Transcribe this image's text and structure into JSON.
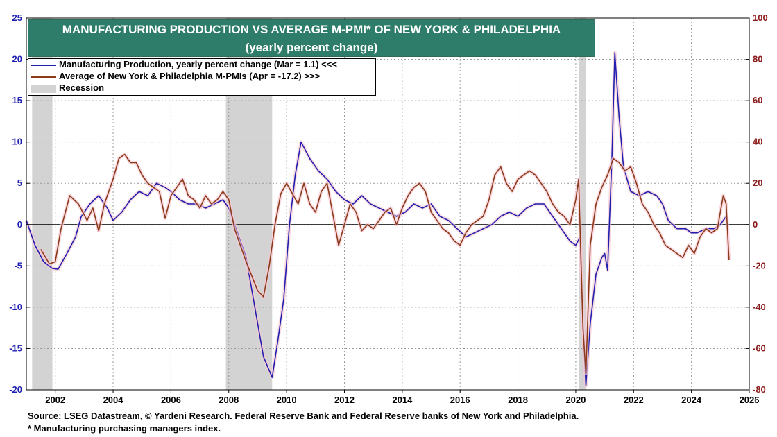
{
  "title": {
    "line1": "MANUFACTURING PRODUCTION VS AVERAGE M-PMI* OF NEW YORK & PHILADELPHIA",
    "line2": "(yearly percent change)",
    "background": "#2e7d6b"
  },
  "legend": {
    "items": [
      {
        "label": "Manufacturing Production, yearly percent change  (Mar = 1.1) <<<",
        "color": "#1f1fb0",
        "kind": "line"
      },
      {
        "label": "Average of New York & Philadelphia M-PMIs (Apr = -17.2) >>>",
        "color": "#8b3a1a",
        "kind": "line"
      },
      {
        "label": "Recession",
        "color": "#d3d3d3",
        "kind": "box"
      }
    ]
  },
  "footnotes": {
    "source": "Source: LSEG Datastream, © Yardeni Research. Federal Reserve Bank and Federal Reserve banks of New York and Philadelphia.",
    "note": "* Manufacturing purchasing managers index."
  },
  "chart_data": {
    "type": "line",
    "xlim": [
      2001.0,
      2026.0
    ],
    "x_ticks": [
      2002,
      2004,
      2006,
      2008,
      2010,
      2012,
      2014,
      2016,
      2018,
      2020,
      2022,
      2024,
      2026
    ],
    "left_axis": {
      "ylim": [
        -20,
        25
      ],
      "ticks": [
        -20,
        -15,
        -10,
        -5,
        0,
        5,
        10,
        15,
        20,
        25
      ],
      "tick_color": "#1f1fb0"
    },
    "right_axis": {
      "ylim": [
        -80,
        100
      ],
      "ticks": [
        -80,
        -60,
        -40,
        -20,
        0,
        20,
        40,
        60,
        80,
        100
      ],
      "tick_color": "#8b1a1a"
    },
    "grid": true,
    "recessions": [
      [
        2001.2,
        2001.9
      ],
      [
        2007.9,
        2009.5
      ],
      [
        2020.1,
        2020.35
      ]
    ],
    "series": [
      {
        "name": "Manufacturing Production, yearly percent change  (Mar = 1.1) <<<",
        "axis": "left",
        "color": "#1f1fb0",
        "points": [
          [
            2001.0,
            0.5
          ],
          [
            2001.3,
            -2.5
          ],
          [
            2001.6,
            -4.5
          ],
          [
            2001.9,
            -5.3
          ],
          [
            2002.1,
            -5.4
          ],
          [
            2002.4,
            -3.5
          ],
          [
            2002.7,
            -1.5
          ],
          [
            2002.9,
            1.0
          ],
          [
            2003.2,
            2.5
          ],
          [
            2003.5,
            3.5
          ],
          [
            2003.8,
            2.0
          ],
          [
            2004.0,
            0.5
          ],
          [
            2004.3,
            1.5
          ],
          [
            2004.6,
            3.0
          ],
          [
            2004.9,
            4.0
          ],
          [
            2005.2,
            3.5
          ],
          [
            2005.5,
            5.0
          ],
          [
            2005.8,
            4.5
          ],
          [
            2006.0,
            4.0
          ],
          [
            2006.3,
            3.0
          ],
          [
            2006.6,
            2.5
          ],
          [
            2006.9,
            2.5
          ],
          [
            2007.2,
            2.0
          ],
          [
            2007.5,
            2.5
          ],
          [
            2007.8,
            3.0
          ],
          [
            2008.0,
            2.0
          ],
          [
            2008.3,
            -1.0
          ],
          [
            2008.6,
            -4.0
          ],
          [
            2008.9,
            -10.0
          ],
          [
            2009.2,
            -16.0
          ],
          [
            2009.5,
            -18.5
          ],
          [
            2009.7,
            -14.0
          ],
          [
            2009.9,
            -9.0
          ],
          [
            2010.1,
            0.0
          ],
          [
            2010.3,
            6.0
          ],
          [
            2010.5,
            10.0
          ],
          [
            2010.8,
            8.0
          ],
          [
            2011.1,
            6.5
          ],
          [
            2011.4,
            5.5
          ],
          [
            2011.7,
            4.0
          ],
          [
            2012.0,
            3.0
          ],
          [
            2012.3,
            2.5
          ],
          [
            2012.6,
            3.5
          ],
          [
            2012.9,
            2.5
          ],
          [
            2013.2,
            2.0
          ],
          [
            2013.5,
            1.5
          ],
          [
            2013.8,
            1.0
          ],
          [
            2014.1,
            1.5
          ],
          [
            2014.4,
            2.5
          ],
          [
            2014.7,
            2.0
          ],
          [
            2015.0,
            2.5
          ],
          [
            2015.3,
            1.0
          ],
          [
            2015.6,
            0.5
          ],
          [
            2015.9,
            -0.5
          ],
          [
            2016.2,
            -1.5
          ],
          [
            2016.5,
            -1.0
          ],
          [
            2016.8,
            -0.5
          ],
          [
            2017.1,
            0.0
          ],
          [
            2017.4,
            1.0
          ],
          [
            2017.7,
            1.5
          ],
          [
            2018.0,
            1.0
          ],
          [
            2018.3,
            2.0
          ],
          [
            2018.6,
            2.5
          ],
          [
            2018.9,
            2.5
          ],
          [
            2019.2,
            1.0
          ],
          [
            2019.5,
            -0.5
          ],
          [
            2019.8,
            -2.0
          ],
          [
            2020.0,
            -2.5
          ],
          [
            2020.15,
            -1.5
          ],
          [
            2020.25,
            -12.0
          ],
          [
            2020.35,
            -19.5
          ],
          [
            2020.5,
            -12.0
          ],
          [
            2020.7,
            -6.0
          ],
          [
            2020.9,
            -4.0
          ],
          [
            2021.0,
            -3.5
          ],
          [
            2021.1,
            -5.5
          ],
          [
            2021.25,
            8.0
          ],
          [
            2021.35,
            20.8
          ],
          [
            2021.5,
            13.0
          ],
          [
            2021.65,
            7.0
          ],
          [
            2021.9,
            4.0
          ],
          [
            2022.2,
            3.5
          ],
          [
            2022.5,
            4.0
          ],
          [
            2022.8,
            3.5
          ],
          [
            2023.0,
            2.5
          ],
          [
            2023.2,
            0.5
          ],
          [
            2023.5,
            -0.5
          ],
          [
            2023.8,
            -0.5
          ],
          [
            2024.0,
            -1.0
          ],
          [
            2024.2,
            -1.0
          ],
          [
            2024.5,
            -0.5
          ],
          [
            2024.8,
            -0.5
          ],
          [
            2025.0,
            0.0
          ],
          [
            2025.2,
            1.0
          ]
        ]
      },
      {
        "name": "Average of New York & Philadelphia M-PMIs (Apr = -17.2) >>>",
        "axis": "right",
        "color": "#8b3a1a",
        "points": [
          [
            2001.5,
            -12
          ],
          [
            2001.8,
            -19
          ],
          [
            2002.0,
            -18
          ],
          [
            2002.2,
            -2
          ],
          [
            2002.5,
            14
          ],
          [
            2002.8,
            10
          ],
          [
            2003.1,
            2
          ],
          [
            2003.3,
            8
          ],
          [
            2003.5,
            -3
          ],
          [
            2003.7,
            10
          ],
          [
            2004.0,
            22
          ],
          [
            2004.2,
            32
          ],
          [
            2004.4,
            34
          ],
          [
            2004.6,
            30
          ],
          [
            2004.8,
            30
          ],
          [
            2005.0,
            24
          ],
          [
            2005.2,
            20
          ],
          [
            2005.4,
            18
          ],
          [
            2005.6,
            16
          ],
          [
            2005.8,
            3
          ],
          [
            2006.0,
            14
          ],
          [
            2006.2,
            18
          ],
          [
            2006.4,
            22
          ],
          [
            2006.6,
            14
          ],
          [
            2006.8,
            12
          ],
          [
            2007.0,
            8
          ],
          [
            2007.2,
            14
          ],
          [
            2007.4,
            10
          ],
          [
            2007.6,
            12
          ],
          [
            2007.8,
            16
          ],
          [
            2008.0,
            12
          ],
          [
            2008.2,
            -2
          ],
          [
            2008.4,
            -10
          ],
          [
            2008.6,
            -18
          ],
          [
            2008.8,
            -25
          ],
          [
            2009.0,
            -32
          ],
          [
            2009.2,
            -35
          ],
          [
            2009.4,
            -20
          ],
          [
            2009.6,
            0
          ],
          [
            2009.8,
            15
          ],
          [
            2010.0,
            20
          ],
          [
            2010.2,
            15
          ],
          [
            2010.4,
            10
          ],
          [
            2010.6,
            20
          ],
          [
            2010.8,
            10
          ],
          [
            2011.0,
            6
          ],
          [
            2011.2,
            16
          ],
          [
            2011.4,
            20
          ],
          [
            2011.6,
            5
          ],
          [
            2011.8,
            -10
          ],
          [
            2012.0,
            0
          ],
          [
            2012.2,
            10
          ],
          [
            2012.4,
            6
          ],
          [
            2012.6,
            -3
          ],
          [
            2012.8,
            0
          ],
          [
            2013.0,
            -2
          ],
          [
            2013.2,
            2
          ],
          [
            2013.4,
            6
          ],
          [
            2013.6,
            8
          ],
          [
            2013.8,
            0
          ],
          [
            2014.0,
            8
          ],
          [
            2014.2,
            14
          ],
          [
            2014.4,
            18
          ],
          [
            2014.6,
            20
          ],
          [
            2014.8,
            16
          ],
          [
            2015.0,
            6
          ],
          [
            2015.2,
            2
          ],
          [
            2015.4,
            -2
          ],
          [
            2015.6,
            -4
          ],
          [
            2015.8,
            -8
          ],
          [
            2016.0,
            -10
          ],
          [
            2016.2,
            -4
          ],
          [
            2016.4,
            0
          ],
          [
            2016.6,
            2
          ],
          [
            2016.8,
            4
          ],
          [
            2017.0,
            12
          ],
          [
            2017.2,
            24
          ],
          [
            2017.4,
            28
          ],
          [
            2017.6,
            20
          ],
          [
            2017.8,
            16
          ],
          [
            2018.0,
            22
          ],
          [
            2018.2,
            24
          ],
          [
            2018.4,
            26
          ],
          [
            2018.6,
            24
          ],
          [
            2018.8,
            20
          ],
          [
            2019.0,
            16
          ],
          [
            2019.2,
            10
          ],
          [
            2019.4,
            6
          ],
          [
            2019.6,
            4
          ],
          [
            2019.8,
            0
          ],
          [
            2020.0,
            12
          ],
          [
            2020.1,
            22
          ],
          [
            2020.25,
            -50
          ],
          [
            2020.35,
            -72
          ],
          [
            2020.5,
            -10
          ],
          [
            2020.7,
            10
          ],
          [
            2020.9,
            18
          ],
          [
            2021.1,
            24
          ],
          [
            2021.3,
            32
          ],
          [
            2021.5,
            30
          ],
          [
            2021.7,
            26
          ],
          [
            2021.9,
            28
          ],
          [
            2022.1,
            20
          ],
          [
            2022.3,
            10
          ],
          [
            2022.5,
            6
          ],
          [
            2022.7,
            0
          ],
          [
            2022.9,
            -4
          ],
          [
            2023.1,
            -10
          ],
          [
            2023.3,
            -12
          ],
          [
            2023.5,
            -14
          ],
          [
            2023.7,
            -16
          ],
          [
            2023.9,
            -10
          ],
          [
            2024.1,
            -14
          ],
          [
            2024.3,
            -6
          ],
          [
            2024.5,
            -2
          ],
          [
            2024.7,
            -4
          ],
          [
            2024.9,
            -2
          ],
          [
            2025.0,
            6
          ],
          [
            2025.1,
            14
          ],
          [
            2025.2,
            10
          ],
          [
            2025.3,
            -17.2
          ]
        ]
      }
    ]
  }
}
